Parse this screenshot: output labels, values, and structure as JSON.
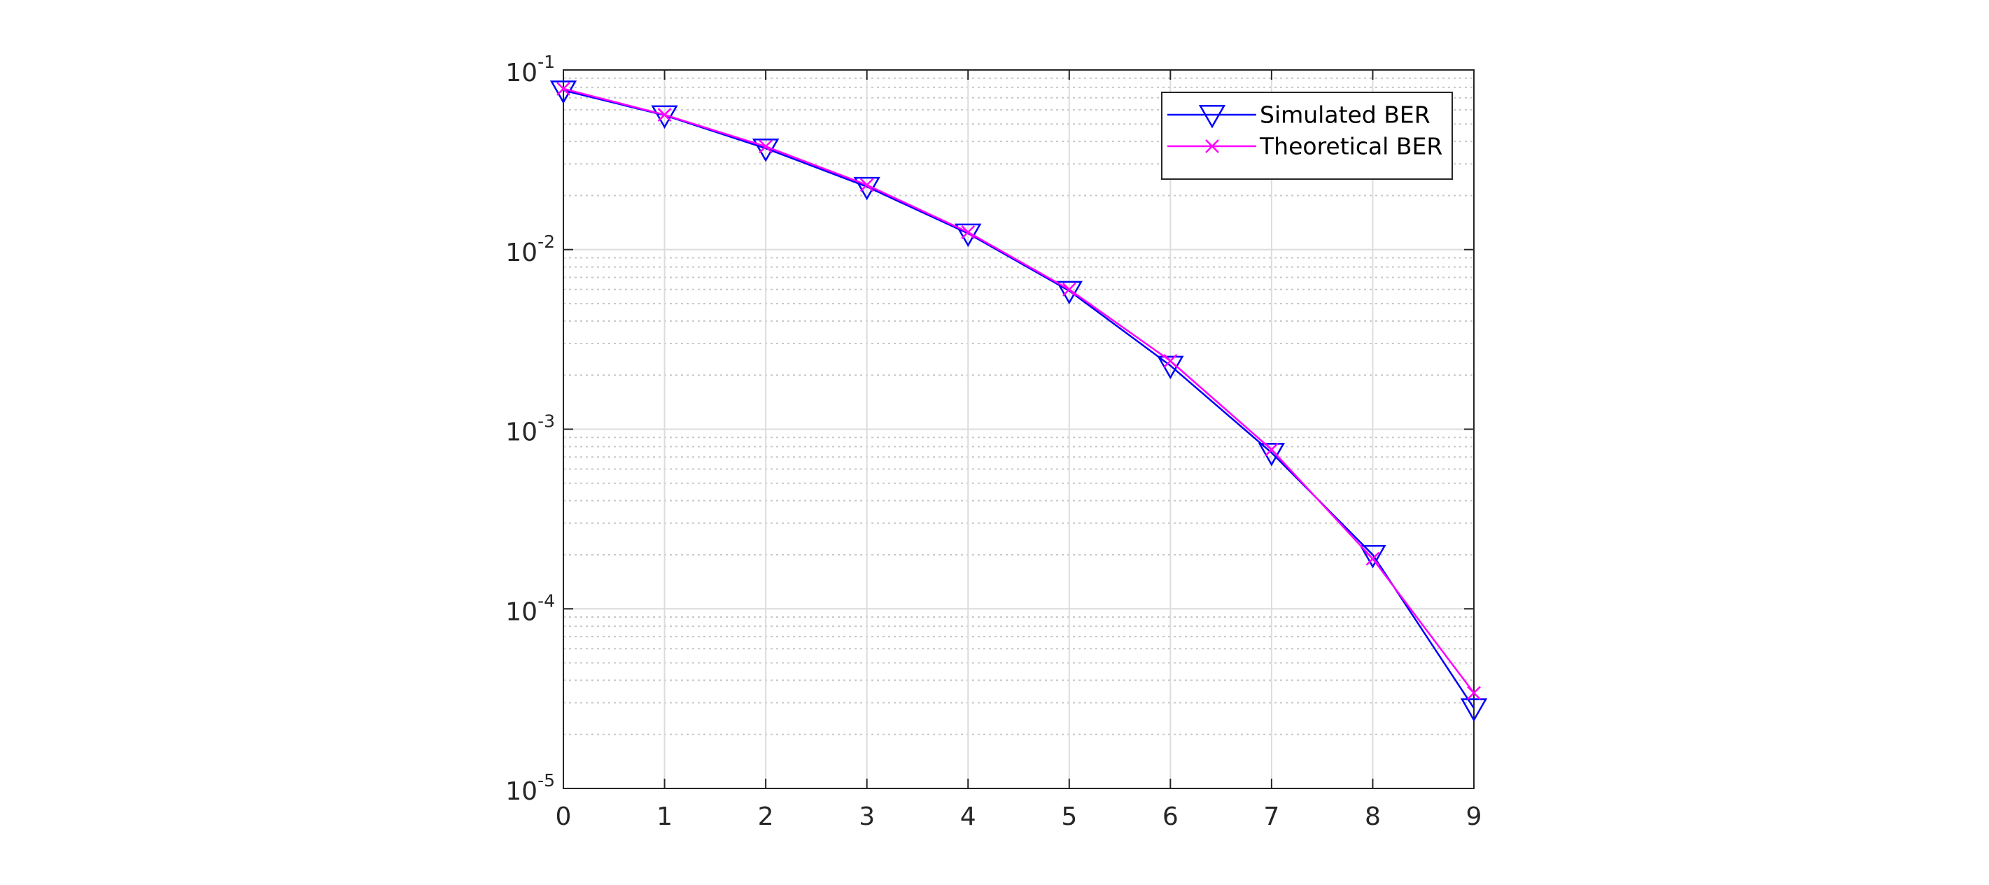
{
  "chart_data": {
    "type": "line",
    "x": [
      0,
      1,
      2,
      3,
      4,
      5,
      6,
      7,
      8,
      9
    ],
    "series": [
      {
        "name": "Simulated BER",
        "color": "#0000ff",
        "marker": "triangle-down",
        "values": [
          0.077,
          0.056,
          0.0366,
          0.0224,
          0.0123,
          0.0059,
          0.00226,
          0.00074,
          0.0002,
          2.8e-05
        ]
      },
      {
        "name": "Theoretical BER",
        "color": "#ff00ff",
        "marker": "x",
        "values": [
          0.0786,
          0.0563,
          0.0375,
          0.0229,
          0.0125,
          0.006,
          0.0024,
          0.00077,
          0.00019,
          3.4e-05
        ]
      }
    ],
    "xlim": [
      0,
      9
    ],
    "xticks": [
      0,
      1,
      2,
      3,
      4,
      5,
      6,
      7,
      8,
      9
    ],
    "ylim": [
      1e-05,
      0.1
    ],
    "yticks": [
      {
        "value": 1e-05,
        "label": "10",
        "exponent": "-5"
      },
      {
        "value": 0.0001,
        "label": "10",
        "exponent": "-4"
      },
      {
        "value": 0.001,
        "label": "10",
        "exponent": "-3"
      },
      {
        "value": 0.01,
        "label": "10",
        "exponent": "-2"
      },
      {
        "value": 0.1,
        "label": "10",
        "exponent": "-1"
      }
    ],
    "y_scale": "log",
    "grid": true,
    "minor_grid": true,
    "legend_position": "upper right"
  }
}
